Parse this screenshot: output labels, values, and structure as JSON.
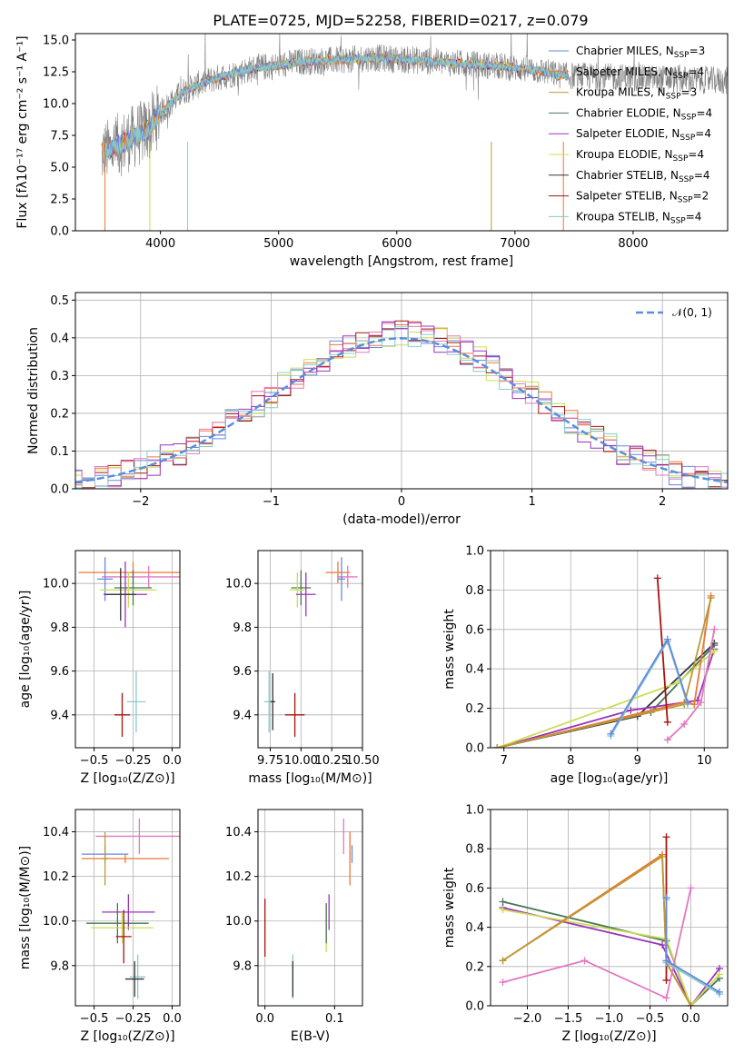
{
  "figure": {
    "title": "PLATE=0725, MJD=52258, FIBERID=0217, z=0.079"
  },
  "colors": {
    "chabrier_miles": "#6688dd",
    "salpeter_miles": "#ee7733",
    "kroupa_miles": "#bb9933",
    "chabrier_elodie": "#447755",
    "salpeter_elodie": "#9933bb",
    "kroupa_elodie": "#ccdd55",
    "chabrier_stelib": "#333333",
    "salpeter_stelib": "#aa1111",
    "kroupa_stelib": "#88cccc",
    "pink": "#e377c2",
    "data": "#808080",
    "normal_curve": "#5b8fd9"
  },
  "chart_data": [
    {
      "id": "spectrum",
      "type": "line",
      "xlabel": "wavelength [Angstrom, rest frame]",
      "ylabel": "Flux [fλ10⁻¹⁷ erg cm⁻² s⁻¹ A⁻¹]",
      "xlim": [
        3280,
        8800
      ],
      "ylim": [
        0,
        15.5
      ],
      "xticks": [
        4000,
        5000,
        6000,
        7000,
        8000
      ],
      "yticks": [
        0.0,
        2.5,
        5.0,
        7.5,
        10.0,
        12.5,
        15.0
      ],
      "continuum": {
        "x": [
          3500,
          3700,
          3900,
          4000,
          4200,
          4400,
          4600,
          4800,
          5000,
          5200,
          5500,
          5800,
          6000,
          6300,
          6600,
          6900,
          7200,
          7400
        ],
        "y": [
          6.0,
          7.0,
          8.0,
          9.3,
          11.0,
          11.8,
          12.3,
          12.8,
          13.0,
          13.3,
          13.4,
          13.6,
          13.5,
          13.3,
          13.1,
          12.9,
          12.6,
          12.2
        ]
      },
      "legend": [
        {
          "label": "Chabrier MILES, N",
          "sub": "SSP",
          "suffix": "=3",
          "color_key": "chabrier_miles"
        },
        {
          "label": "Salpeter MILES, N",
          "sub": "SSP",
          "suffix": "=4",
          "color_key": "salpeter_miles"
        },
        {
          "label": "Kroupa MILES, N",
          "sub": "SSP",
          "suffix": "=3",
          "color_key": "kroupa_miles"
        },
        {
          "label": "Chabrier ELODIE, N",
          "sub": "SSP",
          "suffix": "=4",
          "color_key": "chabrier_elodie"
        },
        {
          "label": "Salpeter ELODIE, N",
          "sub": "SSP",
          "suffix": "=4",
          "color_key": "salpeter_elodie"
        },
        {
          "label": "Kroupa ELODIE, N",
          "sub": "SSP",
          "suffix": "=4",
          "color_key": "kroupa_elodie"
        },
        {
          "label": "Chabrier STELIB, N",
          "sub": "SSP",
          "suffix": "=4",
          "color_key": "chabrier_stelib"
        },
        {
          "label": "Salpeter STELIB, N",
          "sub": "SSP",
          "suffix": "=2",
          "color_key": "salpeter_stelib"
        },
        {
          "label": "Kroupa STELIB, N",
          "sub": "SSP",
          "suffix": "=4",
          "color_key": "kroupa_stelib"
        }
      ]
    },
    {
      "id": "residuals",
      "type": "line",
      "xlabel": "(data-model)/error",
      "ylabel": "Normed distribution",
      "xlim": [
        -2.5,
        2.5
      ],
      "ylim": [
        0,
        0.52
      ],
      "xticks": [
        -2,
        -1,
        0,
        1,
        2
      ],
      "yticks": [
        0.0,
        0.1,
        0.2,
        0.3,
        0.4,
        0.5
      ],
      "grid": true,
      "legend_label": "𝒩(0, 1)",
      "bin_width": 0.1
    },
    {
      "id": "age_vs_Z",
      "type": "scatter",
      "xlabel": "Z [log₁₀(Z/Z⊙)]",
      "ylabel": "age  [log₁₀(age/yr)]",
      "xlim": [
        -0.62,
        0.05
      ],
      "ylim": [
        9.25,
        10.15
      ],
      "xticks": [
        -0.5,
        -0.25,
        0.0
      ],
      "xticklabels": [
        "−0.5",
        "−0.25",
        "0.0"
      ],
      "yticks": [
        9.4,
        9.6,
        9.8,
        10.0
      ],
      "grid": true,
      "points": [
        {
          "x": -0.25,
          "y": 10.05,
          "xerr": 0.35,
          "yerr": 0.05,
          "color_key": "salpeter_miles"
        },
        {
          "x": -0.15,
          "y": 10.03,
          "xerr": 0.3,
          "yerr": 0.05,
          "color_key": "pink"
        },
        {
          "x": -0.43,
          "y": 10.02,
          "xerr": 0.05,
          "yerr": 0.1,
          "color_key": "chabrier_miles"
        },
        {
          "x": -0.25,
          "y": 9.98,
          "xerr": 0.12,
          "yerr": 0.08,
          "color_key": "chabrier_elodie"
        },
        {
          "x": -0.28,
          "y": 9.97,
          "xerr": 0.18,
          "yerr": 0.08,
          "color_key": "kroupa_elodie"
        },
        {
          "x": -0.3,
          "y": 9.95,
          "xerr": 0.14,
          "yerr": 0.15,
          "color_key": "salpeter_elodie"
        },
        {
          "x": -0.33,
          "y": 9.95,
          "xerr": 0.1,
          "yerr": 0.12,
          "color_key": "chabrier_stelib"
        },
        {
          "x": -0.32,
          "y": 9.4,
          "xerr": 0.05,
          "yerr": 0.1,
          "color_key": "salpeter_stelib"
        },
        {
          "x": -0.23,
          "y": 9.46,
          "xerr": 0.06,
          "yerr": 0.14,
          "color_key": "kroupa_stelib"
        }
      ]
    },
    {
      "id": "age_vs_mass",
      "type": "scatter",
      "xlabel": "mass [log₁₀(M/M⊙)]",
      "ylabel": "",
      "xlim": [
        9.65,
        10.5
      ],
      "ylim": [
        9.25,
        10.15
      ],
      "xticks": [
        9.75,
        10.0,
        10.25,
        10.5
      ],
      "xticklabels": [
        "9.75",
        "10.00",
        "10.25",
        "10.50"
      ],
      "yticks": [
        9.4,
        9.6,
        9.8,
        10.0
      ],
      "grid": true,
      "points": [
        {
          "x": 10.3,
          "y": 10.05,
          "xerr": 0.1,
          "yerr": 0.05,
          "color_key": "salpeter_miles"
        },
        {
          "x": 10.38,
          "y": 10.03,
          "xerr": 0.08,
          "yerr": 0.05,
          "color_key": "pink"
        },
        {
          "x": 10.33,
          "y": 10.02,
          "xerr": 0.03,
          "yerr": 0.1,
          "color_key": "chabrier_miles"
        },
        {
          "x": 10.0,
          "y": 9.98,
          "xerr": 0.08,
          "yerr": 0.08,
          "color_key": "chabrier_elodie"
        },
        {
          "x": 9.97,
          "y": 9.97,
          "xerr": 0.06,
          "yerr": 0.08,
          "color_key": "kroupa_elodie"
        },
        {
          "x": 10.04,
          "y": 9.95,
          "xerr": 0.08,
          "yerr": 0.1,
          "color_key": "salpeter_elodie"
        },
        {
          "x": 9.74,
          "y": 9.46,
          "xerr": 0.04,
          "yerr": 0.14,
          "color_key": "kroupa_stelib"
        },
        {
          "x": 9.77,
          "y": 9.46,
          "xerr": 0.02,
          "yerr": 0.13,
          "color_key": "chabrier_stelib"
        },
        {
          "x": 9.95,
          "y": 9.4,
          "xerr": 0.08,
          "yerr": 0.1,
          "color_key": "salpeter_stelib"
        }
      ]
    },
    {
      "id": "weight_vs_age",
      "type": "line",
      "xlabel": "age  [log₁₀(age/yr)]",
      "ylabel": "mass weight",
      "xlim": [
        6.8,
        10.35
      ],
      "ylim": [
        0,
        1.0
      ],
      "xticks": [
        7,
        8,
        9,
        10
      ],
      "yticks": [
        0.0,
        0.2,
        0.4,
        0.6,
        0.8,
        1.0
      ],
      "grid": true,
      "series": [
        {
          "color_key": "chabrier_stelib",
          "x": [
            6.9,
            9.0,
            10.15
          ],
          "y": [
            0.0,
            0.16,
            0.53
          ]
        },
        {
          "color_key": "chabrier_elodie",
          "x": [
            6.9,
            9.2,
            10.15
          ],
          "y": [
            0.0,
            0.18,
            0.52
          ]
        },
        {
          "color_key": "salpeter_elodie",
          "x": [
            6.9,
            8.9,
            9.9,
            10.15
          ],
          "y": [
            0.0,
            0.19,
            0.24,
            0.5
          ]
        },
        {
          "color_key": "kroupa_elodie",
          "x": [
            6.9,
            9.6,
            10.15
          ],
          "y": [
            0.0,
            0.33,
            0.49
          ]
        },
        {
          "color_key": "salpeter_miles",
          "x": [
            6.9,
            9.7,
            9.85,
            10.1
          ],
          "y": [
            0.0,
            0.23,
            0.22,
            0.77
          ]
        },
        {
          "color_key": "kroupa_miles",
          "x": [
            6.9,
            9.7,
            10.1
          ],
          "y": [
            0.0,
            0.22,
            0.76
          ]
        },
        {
          "color_key": "salpeter_stelib",
          "x": [
            9.3,
            9.45
          ],
          "y": [
            0.86,
            0.13
          ]
        },
        {
          "color_key": "kroupa_stelib",
          "x": [
            8.6,
            9.45,
            9.75
          ],
          "y": [
            0.06,
            0.54,
            0.22
          ]
        },
        {
          "color_key": "chabrier_miles",
          "x": [
            8.6,
            9.45,
            9.75
          ],
          "y": [
            0.07,
            0.55,
            0.23
          ]
        },
        {
          "color_key": "pink",
          "x": [
            9.45,
            9.7,
            9.95,
            10.15
          ],
          "y": [
            0.04,
            0.12,
            0.23,
            0.6
          ]
        }
      ]
    },
    {
      "id": "mass_vs_Z",
      "type": "scatter",
      "xlabel": "Z [log₁₀(Z/Z⊙)]",
      "ylabel": "mass [log₁₀(M/M⊙)]",
      "xlim": [
        -0.62,
        0.05
      ],
      "ylim": [
        9.62,
        10.5
      ],
      "xticks": [
        -0.5,
        -0.25,
        0.0
      ],
      "xticklabels": [
        "−0.5",
        "−0.25",
        "0.0"
      ],
      "yticks": [
        9.8,
        10.0,
        10.2,
        10.4
      ],
      "grid": true,
      "points": [
        {
          "x": -0.21,
          "y": 10.38,
          "xerr": 0.28,
          "yerr": 0.08,
          "color_key": "pink"
        },
        {
          "x": -0.43,
          "y": 10.3,
          "xerr": 0.15,
          "yerr": 0.04,
          "color_key": "chabrier_miles"
        },
        {
          "x": -0.3,
          "y": 10.28,
          "xerr": 0.28,
          "yerr": 0.02,
          "color_key": "salpeter_miles"
        },
        {
          "x": -0.43,
          "y": 10.28,
          "xerr": 0.02,
          "yerr": 0.12,
          "color_key": "kroupa_miles"
        },
        {
          "x": -0.28,
          "y": 10.04,
          "xerr": 0.17,
          "yerr": 0.08,
          "color_key": "salpeter_elodie"
        },
        {
          "x": -0.35,
          "y": 9.99,
          "xerr": 0.2,
          "yerr": 0.09,
          "color_key": "chabrier_elodie"
        },
        {
          "x": -0.32,
          "y": 9.97,
          "xerr": 0.2,
          "yerr": 0.07,
          "color_key": "kroupa_elodie"
        },
        {
          "x": -0.31,
          "y": 9.93,
          "xerr": 0.05,
          "yerr": 0.12,
          "color_key": "salpeter_stelib"
        },
        {
          "x": -0.22,
          "y": 9.75,
          "xerr": 0.05,
          "yerr": 0.1,
          "color_key": "kroupa_stelib"
        },
        {
          "x": -0.24,
          "y": 9.74,
          "xerr": 0.06,
          "yerr": 0.08,
          "color_key": "chabrier_stelib"
        }
      ]
    },
    {
      "id": "mass_vs_EBV",
      "type": "scatter",
      "xlabel": "E(B-V)",
      "ylabel": "",
      "xlim": [
        -0.01,
        0.14
      ],
      "ylim": [
        9.62,
        10.5
      ],
      "xticks": [
        0.0,
        0.1
      ],
      "xticklabels": [
        "0.0",
        "0.1"
      ],
      "yticks": [
        9.8,
        10.0,
        10.2,
        10.4
      ],
      "grid": true,
      "points": [
        {
          "x": 0.0,
          "y": 9.97,
          "xerr": 0.0,
          "yerr": 0.13,
          "color_key": "salpeter_stelib"
        },
        {
          "x": 0.04,
          "y": 9.75,
          "xerr": 0.0,
          "yerr": 0.1,
          "color_key": "kroupa_stelib"
        },
        {
          "x": 0.04,
          "y": 9.74,
          "xerr": 0.0,
          "yerr": 0.08,
          "color_key": "chabrier_stelib"
        },
        {
          "x": 0.088,
          "y": 9.97,
          "xerr": 0.0,
          "yerr": 0.11,
          "color_key": "kroupa_elodie"
        },
        {
          "x": 0.088,
          "y": 9.99,
          "xerr": 0.0,
          "yerr": 0.09,
          "color_key": "chabrier_elodie"
        },
        {
          "x": 0.092,
          "y": 10.04,
          "xerr": 0.0,
          "yerr": 0.08,
          "color_key": "salpeter_elodie"
        },
        {
          "x": 0.113,
          "y": 10.38,
          "xerr": 0.0,
          "yerr": 0.08,
          "color_key": "pink"
        },
        {
          "x": 0.122,
          "y": 10.28,
          "xerr": 0.0,
          "yerr": 0.12,
          "color_key": "salpeter_miles"
        },
        {
          "x": 0.125,
          "y": 10.3,
          "xerr": 0.0,
          "yerr": 0.04,
          "color_key": "chabrier_miles"
        }
      ]
    },
    {
      "id": "weight_vs_Z",
      "type": "line",
      "xlabel": "Z [log₁₀(Z/Z⊙)]",
      "ylabel": "mass weight",
      "xlim": [
        -2.45,
        0.45
      ],
      "ylim": [
        0,
        1.0
      ],
      "xticks": [
        -2.0,
        -1.5,
        -1.0,
        -0.5,
        0.0
      ],
      "xticklabels": [
        "−2.0",
        "−1.5",
        "−1.0",
        "−0.5",
        "0.0"
      ],
      "yticks": [
        0.0,
        0.2,
        0.4,
        0.6,
        0.8,
        1.0
      ],
      "grid": true,
      "series": [
        {
          "color_key": "chabrier_elodie",
          "x": [
            -2.3,
            -0.3,
            0.0,
            0.35
          ],
          "y": [
            0.53,
            0.33,
            0.0,
            0.14
          ]
        },
        {
          "color_key": "salpeter_elodie",
          "x": [
            -2.3,
            -0.35,
            0.0,
            0.35
          ],
          "y": [
            0.5,
            0.31,
            0.0,
            0.19
          ]
        },
        {
          "color_key": "kroupa_elodie",
          "x": [
            -2.3,
            -0.3,
            0.0,
            0.35
          ],
          "y": [
            0.49,
            0.34,
            0.0,
            0.16
          ]
        },
        {
          "color_key": "salpeter_miles",
          "x": [
            -2.3,
            -0.35,
            -0.3,
            0.0
          ],
          "y": [
            0.23,
            0.77,
            0.22,
            0.0
          ]
        },
        {
          "color_key": "kroupa_miles",
          "x": [
            -2.3,
            -0.35,
            -0.3,
            0.0
          ],
          "y": [
            0.23,
            0.76,
            0.22,
            0.0
          ]
        },
        {
          "color_key": "pink",
          "x": [
            -2.3,
            -1.3,
            -0.3,
            0.0
          ],
          "y": [
            0.12,
            0.23,
            0.04,
            0.6
          ]
        },
        {
          "color_key": "salpeter_stelib",
          "x": [
            -0.3,
            -0.3
          ],
          "y": [
            0.86,
            0.13
          ]
        },
        {
          "color_key": "kroupa_stelib",
          "x": [
            -0.3,
            -0.3,
            0.35
          ],
          "y": [
            0.54,
            0.22,
            0.06
          ]
        },
        {
          "color_key": "chabrier_miles",
          "x": [
            -0.3,
            -0.3,
            0.35
          ],
          "y": [
            0.55,
            0.23,
            0.07
          ]
        }
      ]
    }
  ]
}
